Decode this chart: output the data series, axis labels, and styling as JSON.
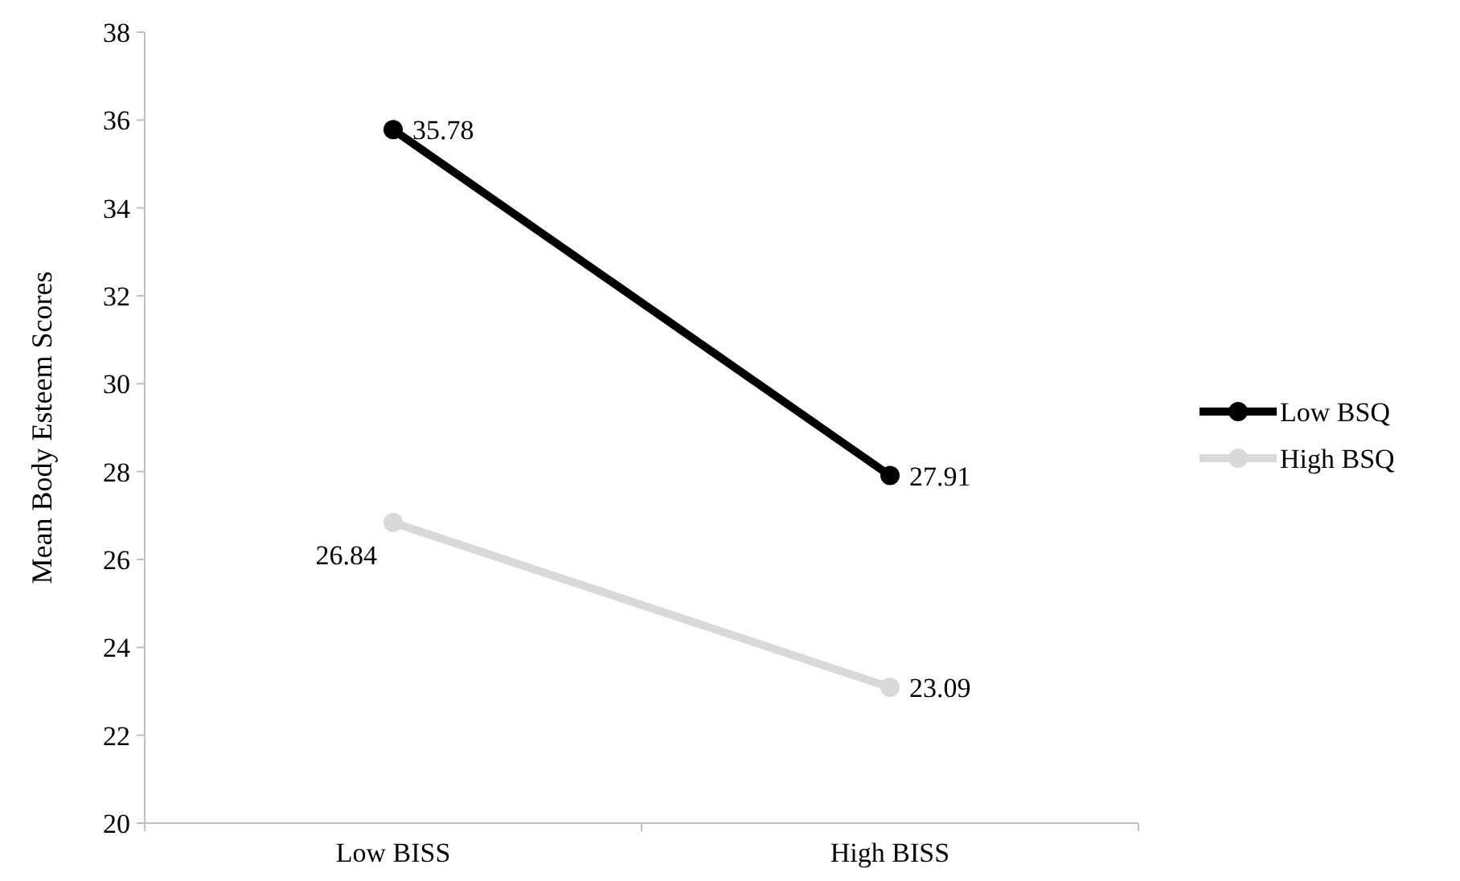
{
  "chart_data": {
    "type": "line",
    "ylabel": "Mean Body Esteem Scores",
    "categories": [
      "Low BISS",
      "High BISS"
    ],
    "series": [
      {
        "name": "Low BSQ",
        "color": "#000000",
        "values": [
          35.78,
          27.91
        ]
      },
      {
        "name": "High BSQ",
        "color": "#d9d9d9",
        "values": [
          26.84,
          23.09
        ]
      }
    ],
    "ylim": [
      20,
      38
    ],
    "yticks": [
      20,
      22,
      24,
      26,
      28,
      30,
      32,
      34,
      36,
      38
    ],
    "grid": false,
    "legend": "right",
    "marker": "circle",
    "line_style": "solid",
    "data_labels": true
  }
}
